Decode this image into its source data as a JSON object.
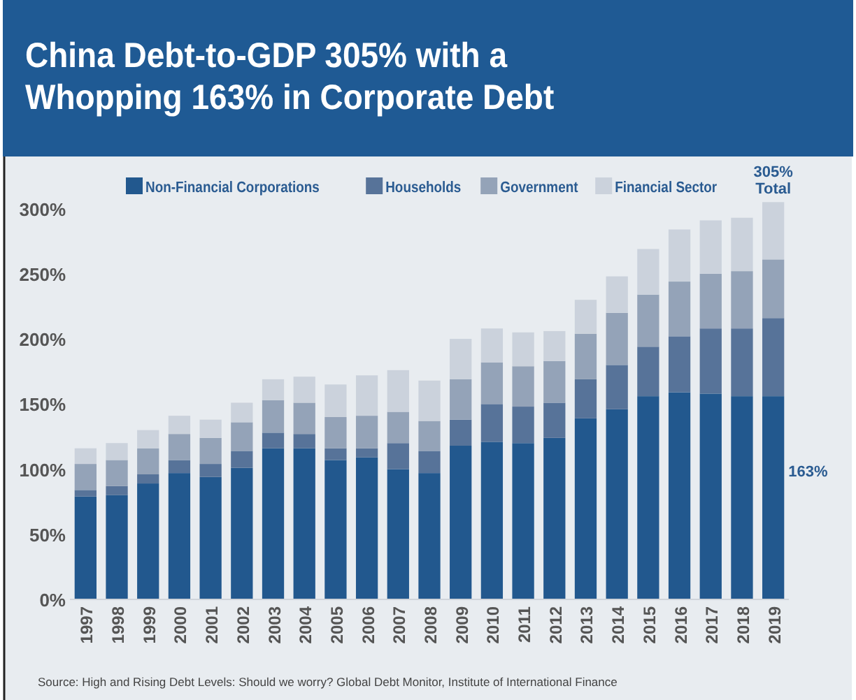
{
  "chart_data": {
    "type": "bar",
    "stacked": true,
    "title": "China Debt-to-GDP 305% with a Whopping 163% in Corporate Debt",
    "categories": [
      "1997",
      "1998",
      "1999",
      "2000",
      "2001",
      "2002",
      "2003",
      "2004",
      "2005",
      "2006",
      "2007",
      "2008",
      "2009",
      "2010",
      "2011",
      "2012",
      "2013",
      "2014",
      "2015",
      "2016",
      "2017",
      "2018",
      "2019"
    ],
    "series": [
      {
        "name": "Non-Financial Corporations",
        "color": "#22588e",
        "values": [
          79,
          80,
          89,
          97,
          94,
          101,
          116,
          116,
          107,
          109,
          100,
          97,
          118,
          121,
          120,
          124,
          139,
          146,
          156,
          159,
          158,
          156,
          156
        ]
      },
      {
        "name": "Households",
        "color": "#577399",
        "values": [
          5,
          7,
          7,
          10,
          10,
          13,
          12,
          11,
          9,
          7,
          20,
          17,
          20,
          29,
          28,
          27,
          30,
          34,
          38,
          43,
          50,
          52,
          60
        ]
      },
      {
        "name": "Government",
        "color": "#94a3b8",
        "values": [
          20,
          20,
          20,
          20,
          20,
          22,
          25,
          24,
          24,
          25,
          24,
          23,
          31,
          32,
          31,
          32,
          35,
          40,
          40,
          42,
          42,
          44,
          45
        ]
      },
      {
        "name": "Financial Sector",
        "color": "#cbd2dc",
        "values": [
          12,
          13,
          14,
          14,
          14,
          15,
          16,
          20,
          25,
          31,
          32,
          31,
          31,
          26,
          26,
          23,
          26,
          28,
          35,
          40,
          41,
          41,
          44
        ]
      }
    ],
    "ylim": [
      0,
      310
    ],
    "yticks": [
      {
        "value": 0,
        "label": "0%"
      },
      {
        "value": 50,
        "label": "50%"
      },
      {
        "value": 100,
        "label": "100%"
      },
      {
        "value": 150,
        "label": "150%"
      },
      {
        "value": 200,
        "label": "200%"
      },
      {
        "value": 250,
        "label": "250%"
      },
      {
        "value": 300,
        "label": "300%"
      }
    ],
    "legend": "top",
    "annotations": [
      "305% Total",
      "163%",
      "Source: High and Rising Debt Levels: Should we worry? Global Debt Monitor, Institute of International Finance"
    ]
  }
}
